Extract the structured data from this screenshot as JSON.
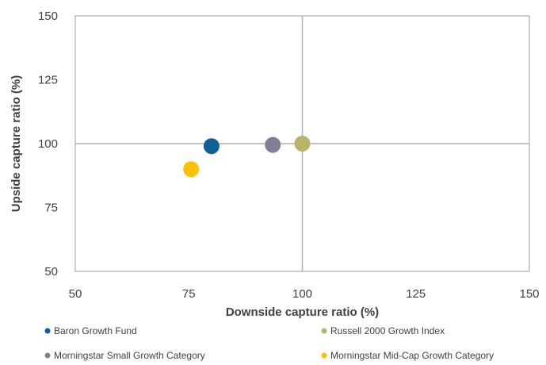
{
  "chart_data": {
    "type": "scatter",
    "xlabel": "Downside capture ratio  (%)",
    "ylabel": "Upside capture ratio  (%)",
    "xlim": [
      50,
      150
    ],
    "ylim": [
      50,
      150
    ],
    "xticks": [
      "50",
      "75",
      "100",
      "125",
      "150"
    ],
    "yticks": [
      "50",
      "75",
      "100",
      "125",
      "150"
    ],
    "reference_lines": {
      "x": 100,
      "y": 100
    },
    "legend_position": "bottom",
    "series": [
      {
        "name": "Baron Growth Fund",
        "x": 80,
        "y": 99,
        "color": "#0E6197"
      },
      {
        "name": "Russell 2000 Growth Index",
        "x": 100,
        "y": 100,
        "color": "#B9B46A"
      },
      {
        "name": "Morningstar Small Growth Category",
        "x": 93.5,
        "y": 99.5,
        "color": "#7F7F97"
      },
      {
        "name": "Morningstar Mid-Cap Growth Category",
        "x": 75.5,
        "y": 90,
        "color": "#FFC000"
      }
    ]
  }
}
